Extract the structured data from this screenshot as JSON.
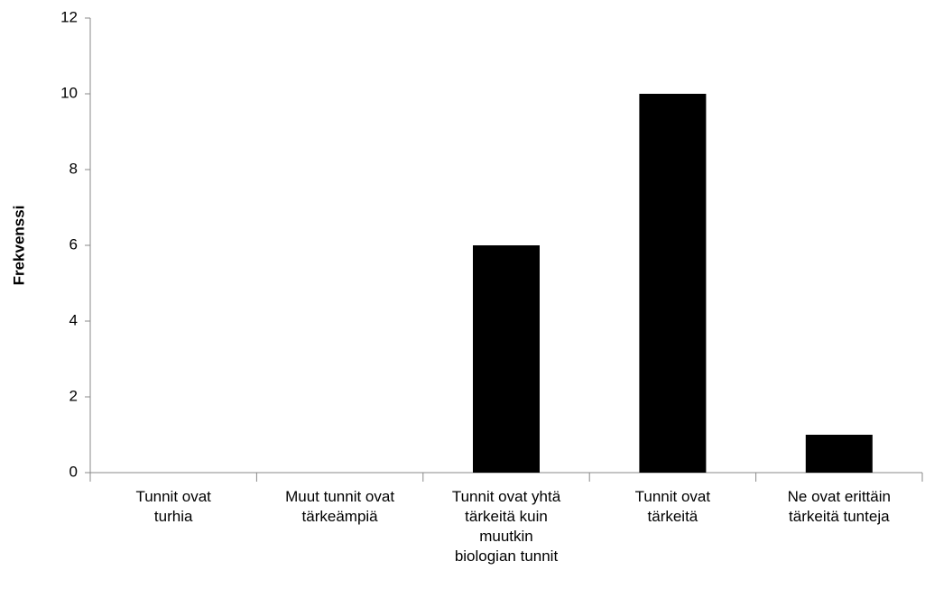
{
  "chart_data": {
    "type": "bar",
    "ylabel": "Frekvenssi",
    "categories": [
      "Tunnit ovat\nturhia",
      "Muut tunnit ovat\ntärkeämpiä",
      "Tunnit ovat yhtä\ntärkeitä kuin\nmuutkin\nbiologian tunnit",
      "Tunnit ovat\ntärkeitä",
      "Ne ovat erittäin\ntärkeitä tunteja"
    ],
    "values": [
      0,
      0,
      6,
      10,
      1
    ],
    "color": "#000000",
    "ylim": [
      0,
      12
    ],
    "yticks": [
      0,
      2,
      4,
      6,
      8,
      10,
      12
    ],
    "grid": false
  }
}
